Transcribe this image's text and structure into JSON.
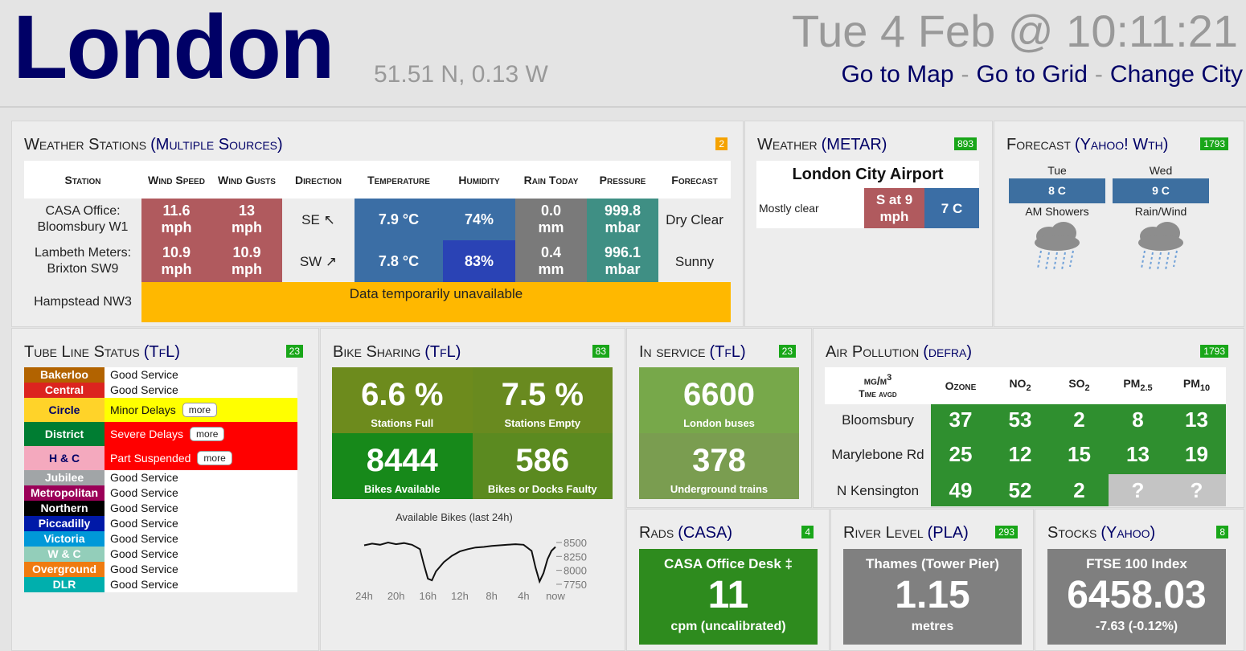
{
  "header": {
    "city": "London",
    "coords": "51.51 N, 0.13 W",
    "datetime": "Tue 4 Feb @ 10:11:21",
    "links": [
      "Go to Map",
      "Go to Grid",
      "Change City"
    ],
    "separator": "-"
  },
  "weather_stations": {
    "title": "Weather Stations",
    "source": "(Multiple Sources)",
    "badge": 2,
    "badge_color": "#f5a200",
    "headers": [
      "Station",
      "Wind Speed",
      "Wind Gusts",
      "Direction",
      "Temperature",
      "Humidity",
      "Rain Today",
      "Pressure",
      "Forecast"
    ],
    "rows": [
      {
        "station": "CASA Office: Bloomsbury W1",
        "cells": [
          "11.6 mph",
          "13 mph",
          "SE ↖",
          "7.9 °C",
          "74%",
          "0.0 mm",
          "999.8 mbar",
          "Dry Clear"
        ],
        "colors": [
          "#b05a5e",
          "#b05a5e",
          null,
          "#3b6ea5",
          "#3b6ea5",
          "#7a7a7a",
          "#3f8f84",
          null
        ]
      },
      {
        "station": "Lambeth Meters: Brixton SW9",
        "cells": [
          "10.9 mph",
          "10.9 mph",
          "SW ↗",
          "7.8 °C",
          "83%",
          "0.4 mm",
          "996.1 mbar",
          "Sunny"
        ],
        "colors": [
          "#b05a5e",
          "#b05a5e",
          null,
          "#3b6ea5",
          "#2a43b5",
          "#7a7a7a",
          "#3f8f84",
          null
        ]
      },
      {
        "station": "Hampstead NW3",
        "notice": "Data temporarily unavailable",
        "notice_color": "#ffb800"
      }
    ]
  },
  "metar": {
    "title": "Weather",
    "source": "(METAR)",
    "badge": 893,
    "station": "London City Airport",
    "summary": "Mostly clear",
    "wind": "S at 9 mph",
    "wind_color": "#b05a5e",
    "temp": "7 C",
    "temp_color": "#3b6ea5"
  },
  "forecast": {
    "title": "Forecast",
    "source": "(Yahoo! Wth)",
    "badge": 1793,
    "days": [
      {
        "day": "Tue",
        "temp": "8 C",
        "summary": "AM Showers"
      },
      {
        "day": "Wed",
        "temp": "9 C",
        "summary": "Rain/Wind"
      }
    ]
  },
  "tube": {
    "title": "Tube Line Status",
    "source": "(TfL)",
    "badge": 23,
    "more_label": "more",
    "lines": [
      {
        "name": "Bakerloo",
        "color": "#b26300",
        "status": "Good Service"
      },
      {
        "name": "Central",
        "color": "#dc241f",
        "status": "Good Service"
      },
      {
        "name": "Circle",
        "color": "#ffd329",
        "text_color": "#000066",
        "status": "Minor Delays",
        "status_color": "#ffff00",
        "more": true
      },
      {
        "name": "District",
        "color": "#007d32",
        "status": "Severe Delays",
        "status_color": "#ff0000",
        "more": true
      },
      {
        "name": "H & C",
        "color": "#f4a9be",
        "text_color": "#000066",
        "status": "Part Suspended",
        "status_color": "#ff0000",
        "more": true
      },
      {
        "name": "Jubilee",
        "color": "#a1a5a7",
        "status": "Good Service"
      },
      {
        "name": "Metropolitan",
        "color": "#9b0058",
        "status": "Good Service"
      },
      {
        "name": "Northern",
        "color": "#000000",
        "status": "Good Service"
      },
      {
        "name": "Piccadilly",
        "color": "#0019a8",
        "status": "Good Service"
      },
      {
        "name": "Victoria",
        "color": "#0098d8",
        "status": "Good Service"
      },
      {
        "name": "W & C",
        "color": "#93ceba",
        "status": "Good Service"
      },
      {
        "name": "Overground",
        "color": "#ef7b10",
        "status": "Good Service"
      },
      {
        "name": "DLR",
        "color": "#00afad",
        "status": "Good Service"
      }
    ]
  },
  "bikes": {
    "title": "Bike Sharing",
    "source": "(TfL)",
    "badge": 83,
    "tiles": [
      {
        "value": "6.6 %",
        "label": "Stations Full",
        "color": "#6d8b1d"
      },
      {
        "value": "7.5 %",
        "label": "Stations Empty",
        "color": "#698a1f"
      },
      {
        "value": 8444,
        "label": "Bikes Available",
        "color": "#17891a"
      },
      {
        "value": 586,
        "label": "Bikes or Docks Faulty",
        "color": "#5b8a20"
      }
    ],
    "chart": {
      "type": "line",
      "title": "Available Bikes (last 24h)",
      "color": "#111111",
      "x": [
        24,
        23,
        22,
        21,
        20,
        19,
        18,
        17,
        16.5,
        16,
        15.5,
        15,
        14,
        13,
        12,
        11,
        10,
        9,
        8,
        7,
        6,
        5,
        4,
        3,
        2.5,
        2,
        1.5,
        1,
        0.5,
        0
      ],
      "values": [
        8450,
        8480,
        8460,
        8500,
        8470,
        8490,
        8460,
        8380,
        8100,
        7850,
        7820,
        7980,
        8150,
        8260,
        8340,
        8380,
        8410,
        8420,
        8440,
        8450,
        8460,
        8470,
        8460,
        8350,
        8050,
        7800,
        7950,
        8200,
        8350,
        8420
      ],
      "xlim": [
        24,
        0
      ],
      "xticks": [
        {
          "value": 24,
          "label": "24h"
        },
        {
          "value": 20,
          "label": "20h"
        },
        {
          "value": 16,
          "label": "16h"
        },
        {
          "value": 12,
          "label": "12h"
        },
        {
          "value": 8,
          "label": "8h"
        },
        {
          "value": 4,
          "label": "4h"
        },
        {
          "value": 0,
          "label": "now"
        }
      ],
      "ylim": [
        7650,
        8650
      ],
      "yticks": [
        8500,
        8250,
        8000,
        7750
      ]
    }
  },
  "in_service": {
    "title": "In service",
    "source": "(TfL)",
    "badge": 23,
    "tiles": [
      {
        "value": 6600,
        "label": "London buses",
        "color": "#77a84a"
      },
      {
        "value": 378,
        "label": "Underground trains",
        "color": "#7a9d50"
      }
    ]
  },
  "air_pollution": {
    "title": "Air Pollution",
    "source": "(defra)",
    "badge": 1793,
    "cell_color": "#2f8f2f",
    "missing_color": "#c4c4c4",
    "headers": [
      {
        "text": "µg/m",
        "sup": "3",
        "line2": "Time avgd"
      },
      {
        "text": "Ozone"
      },
      {
        "text": "NO",
        "sub": "2"
      },
      {
        "text": "SO",
        "sub": "2"
      },
      {
        "text": "PM",
        "sub": "2.5"
      },
      {
        "text": "PM",
        "sub": "10"
      }
    ],
    "rows": [
      {
        "site": "Bloomsbury",
        "values": [
          37,
          53,
          2,
          8,
          13
        ]
      },
      {
        "site": "Marylebone Rd",
        "values": [
          25,
          12,
          15,
          13,
          19
        ]
      },
      {
        "site": "N Kensington",
        "values": [
          49,
          52,
          2,
          "?",
          "?"
        ]
      }
    ]
  },
  "rads": {
    "title": "Rads",
    "source": "(CASA)",
    "badge": 4,
    "heading": "CASA Office Desk ‡",
    "value": 11,
    "unit": "cpm (uncalibrated)",
    "color": "#2e8b1e"
  },
  "river": {
    "title": "River Level",
    "source": "(PLA)",
    "badge": 293,
    "heading": "Thames (Tower Pier)",
    "value": 1.15,
    "unit": "metres",
    "color": "#808080"
  },
  "stocks": {
    "title": "Stocks",
    "source": "(Yahoo)",
    "badge": 8,
    "heading": "FTSE 100 Index",
    "value": 6458.03,
    "change": "-7.63 (-0.12%)",
    "color": "#7f7f7f"
  }
}
